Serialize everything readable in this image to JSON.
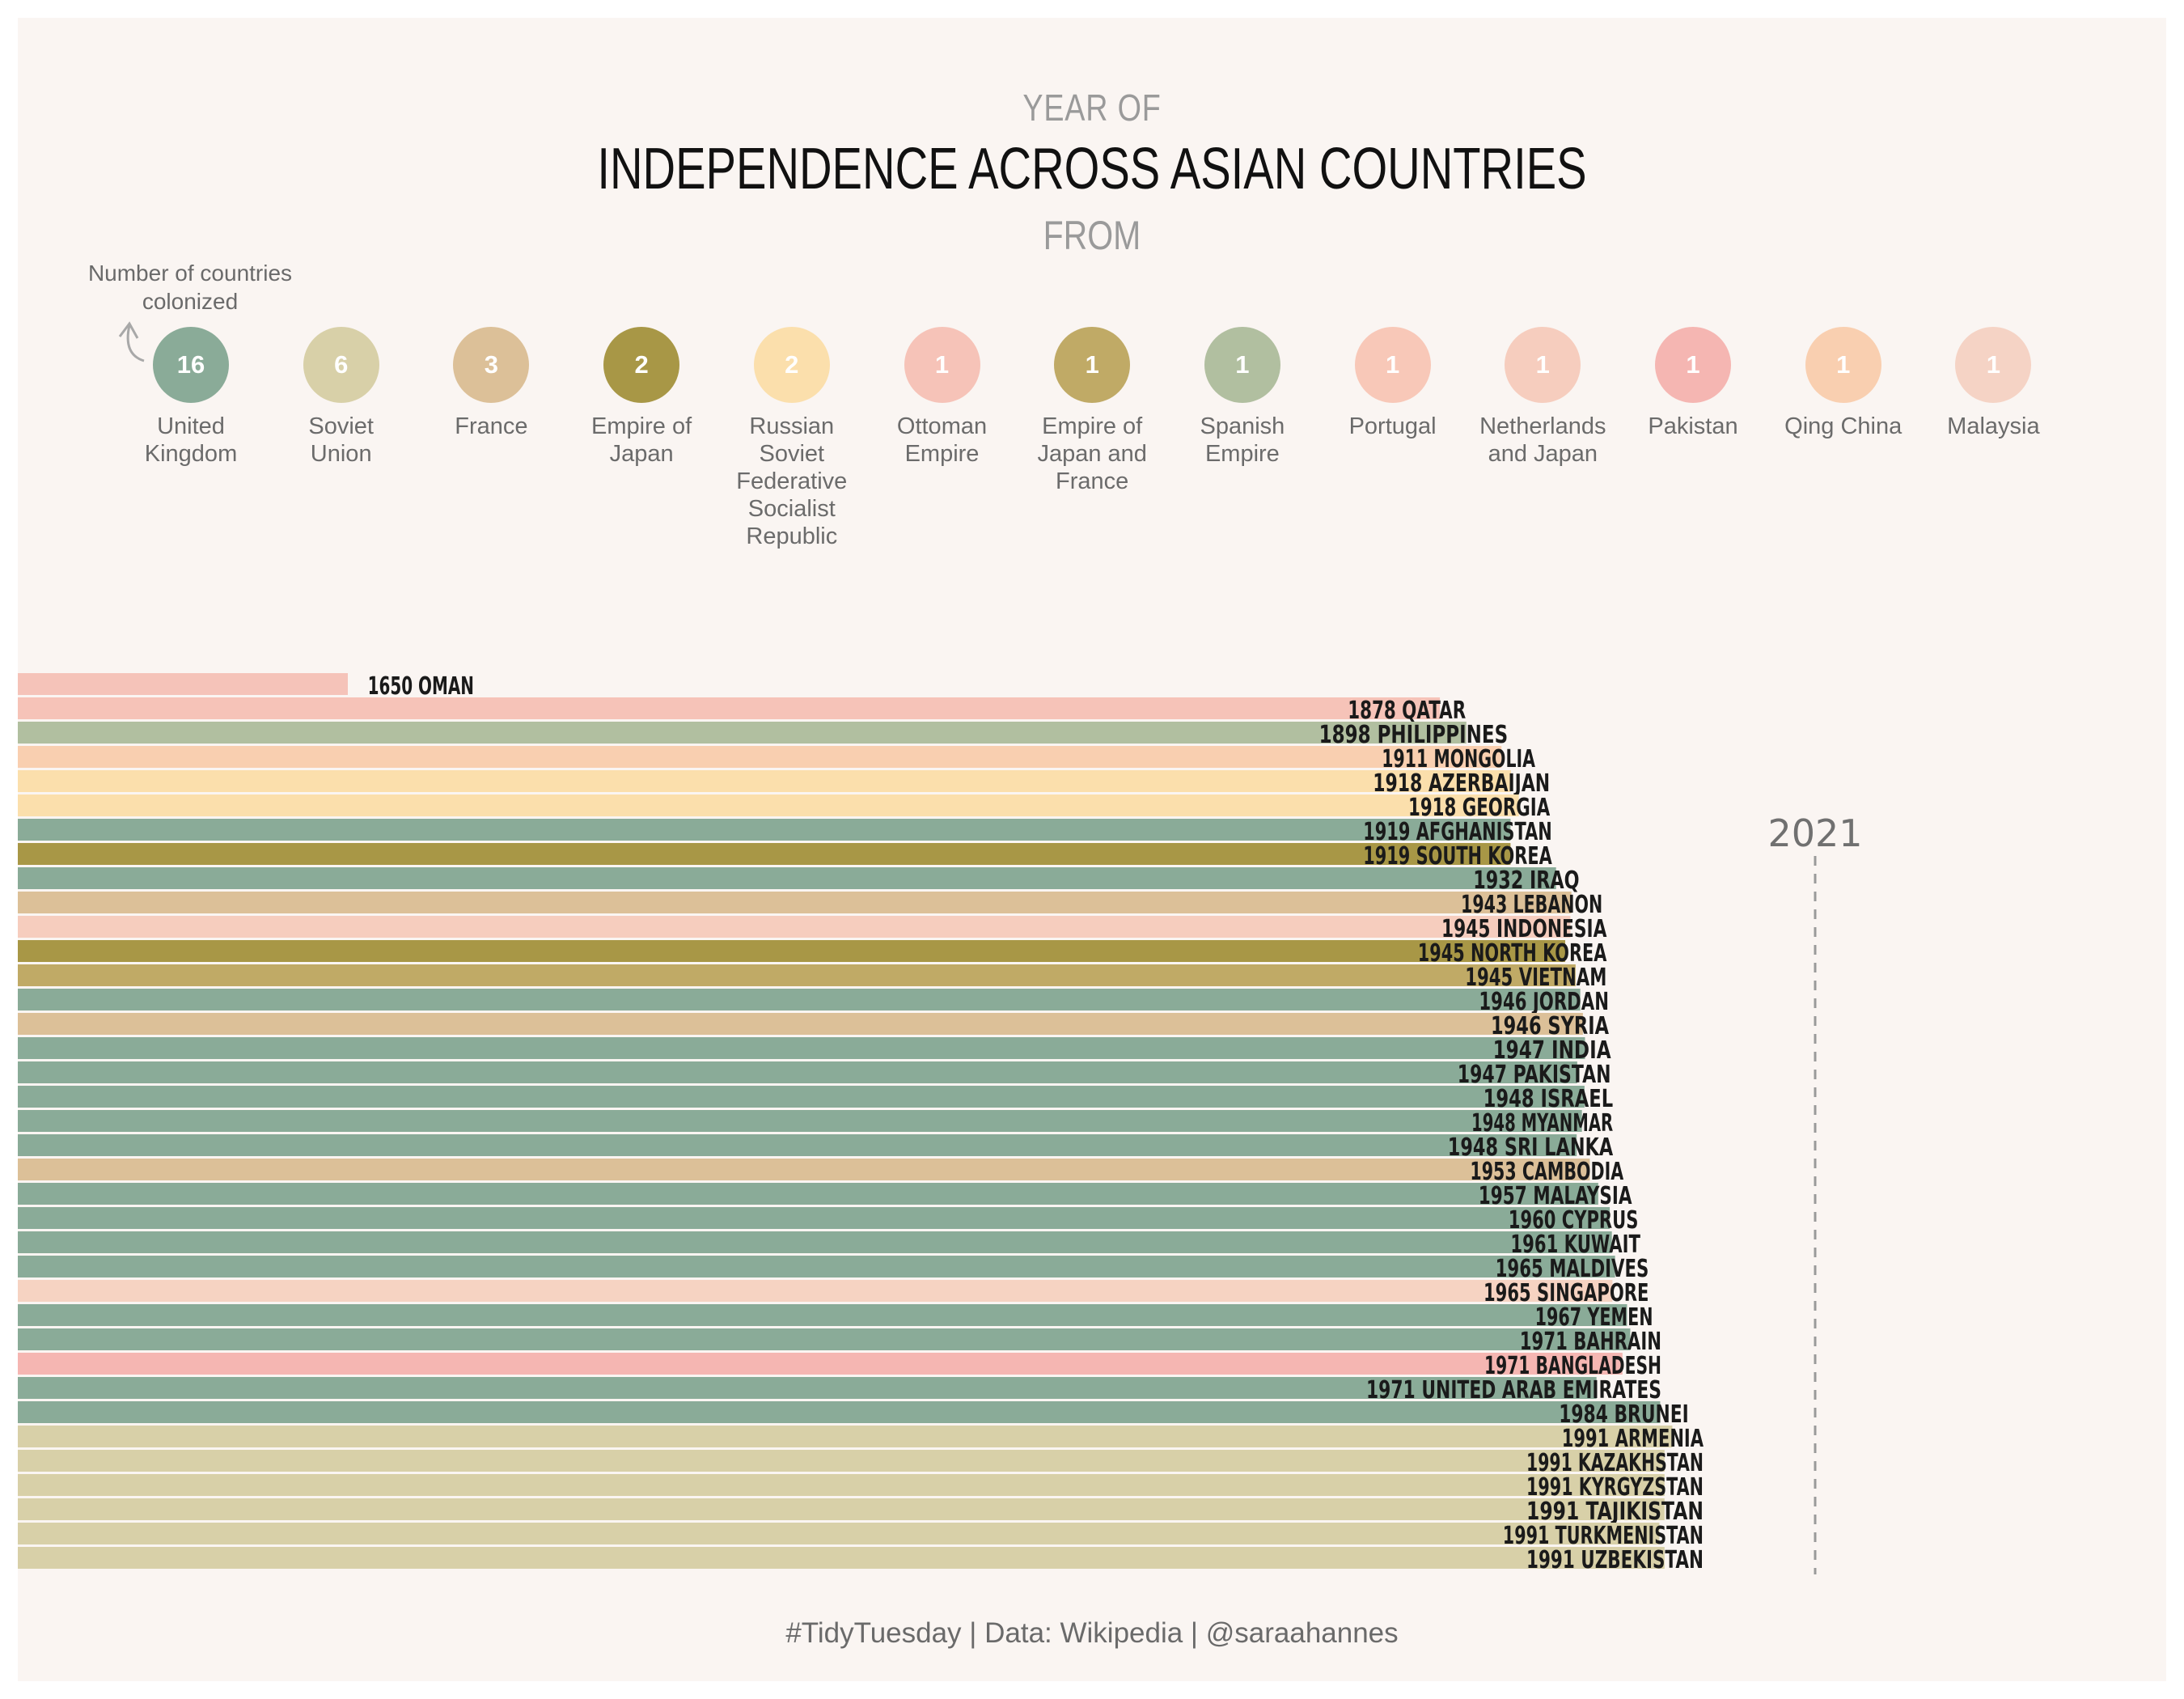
{
  "title": {
    "top": "YEAR OF",
    "main": "INDEPENDENCE ACROSS ASIAN COUNTRIES",
    "bottom": "FROM"
  },
  "legend": {
    "note": "Number of countries colonized",
    "items": [
      {
        "count": "16",
        "label": "United\nKingdom",
        "color": "#8aab98"
      },
      {
        "count": "6",
        "label": "Soviet\nUnion",
        "color": "#d8d0a8"
      },
      {
        "count": "3",
        "label": "France",
        "color": "#dcc098"
      },
      {
        "count": "2",
        "label": "Empire of\nJapan",
        "color": "#a89746"
      },
      {
        "count": "2",
        "label": "Russian\nSoviet\nFederative\nSocialist\nRepublic",
        "color": "#fbdfac"
      },
      {
        "count": "1",
        "label": "Ottoman\nEmpire",
        "color": "#f6c3b8"
      },
      {
        "count": "1",
        "label": "Empire of\nJapan and\nFrance",
        "color": "#c0aa66"
      },
      {
        "count": "1",
        "label": "Spanish\nEmpire",
        "color": "#b1bfa0"
      },
      {
        "count": "1",
        "label": "Portugal",
        "color": "#f8c8b8"
      },
      {
        "count": "1",
        "label": "Netherlands\nand Japan",
        "color": "#f6cdbe"
      },
      {
        "count": "1",
        "label": "Pakistan",
        "color": "#f5b6b2"
      },
      {
        "count": "1",
        "label": "Qing China",
        "color": "#f9cfb0"
      },
      {
        "count": "1",
        "label": "Malaysia",
        "color": "#f5d3c5"
      }
    ]
  },
  "chart_data": {
    "type": "bar",
    "orientation": "horizontal",
    "xlim": [
      1650,
      2021
    ],
    "reference_line": {
      "x": 2021,
      "label": "2021"
    },
    "categories": [
      "1650 OMAN",
      "1878 QATAR",
      "1898 PHILIPPINES",
      "1911 MONGOLIA",
      "1918 AZERBAIJAN",
      "1918 GEORGIA",
      "1919 AFGHANISTAN",
      "1919 SOUTH KOREA",
      "1932 IRAQ",
      "1943 LEBANON",
      "1945 INDONESIA",
      "1945 NORTH KOREA",
      "1945 VIETNAM",
      "1946 JORDAN",
      "1946 SYRIA",
      "1947 INDIA",
      "1947 PAKISTAN",
      "1948 ISRAEL",
      "1948 MYANMAR",
      "1948 SRI LANKA",
      "1953 CAMBODIA",
      "1957 MALAYSIA",
      "1960 CYPRUS",
      "1961 KUWAIT",
      "1965 MALDIVES",
      "1965 SINGAPORE",
      "1967 YEMEN",
      "1971 BAHRAIN",
      "1971 BANGLADESH",
      "1971 UNITED ARAB EMIRATES",
      "1984 BRUNEI",
      "1991 ARMENIA",
      "1991 KAZAKHSTAN",
      "1991 KYRGYZSTAN",
      "1991 TAJIKISTAN",
      "1991 TURKMENISTAN",
      "1991 UZBEKISTAN"
    ],
    "values": [
      1650,
      1878,
      1898,
      1911,
      1918,
      1918,
      1919,
      1919,
      1932,
      1943,
      1945,
      1945,
      1945,
      1946,
      1946,
      1947,
      1947,
      1948,
      1948,
      1948,
      1953,
      1957,
      1960,
      1961,
      1965,
      1965,
      1967,
      1971,
      1971,
      1971,
      1984,
      1991,
      1991,
      1991,
      1991,
      1991,
      1991
    ],
    "colors": [
      "#f5c3b9",
      "#f6c3b8",
      "#b1bfa0",
      "#f9cfb0",
      "#fbdfac",
      "#fbdfac",
      "#8aab98",
      "#a89746",
      "#8aab98",
      "#dcc098",
      "#f6cdbe",
      "#a89746",
      "#c0aa66",
      "#8aab98",
      "#dcc098",
      "#8aab98",
      "#8aab98",
      "#8aab98",
      "#8aab98",
      "#8aab98",
      "#dcc098",
      "#8aab98",
      "#8aab98",
      "#8aab98",
      "#8aab98",
      "#f6d3c2",
      "#8aab98",
      "#8aab98",
      "#f5b6b2",
      "#8aab98",
      "#8aab98",
      "#d8d0a8",
      "#d8d0a8",
      "#d8d0a8",
      "#d8d0a8",
      "#d8d0a8",
      "#d8d0a8"
    ]
  },
  "caption": "#TidyTuesday | Data:  Wikipedia | @saraahannes"
}
